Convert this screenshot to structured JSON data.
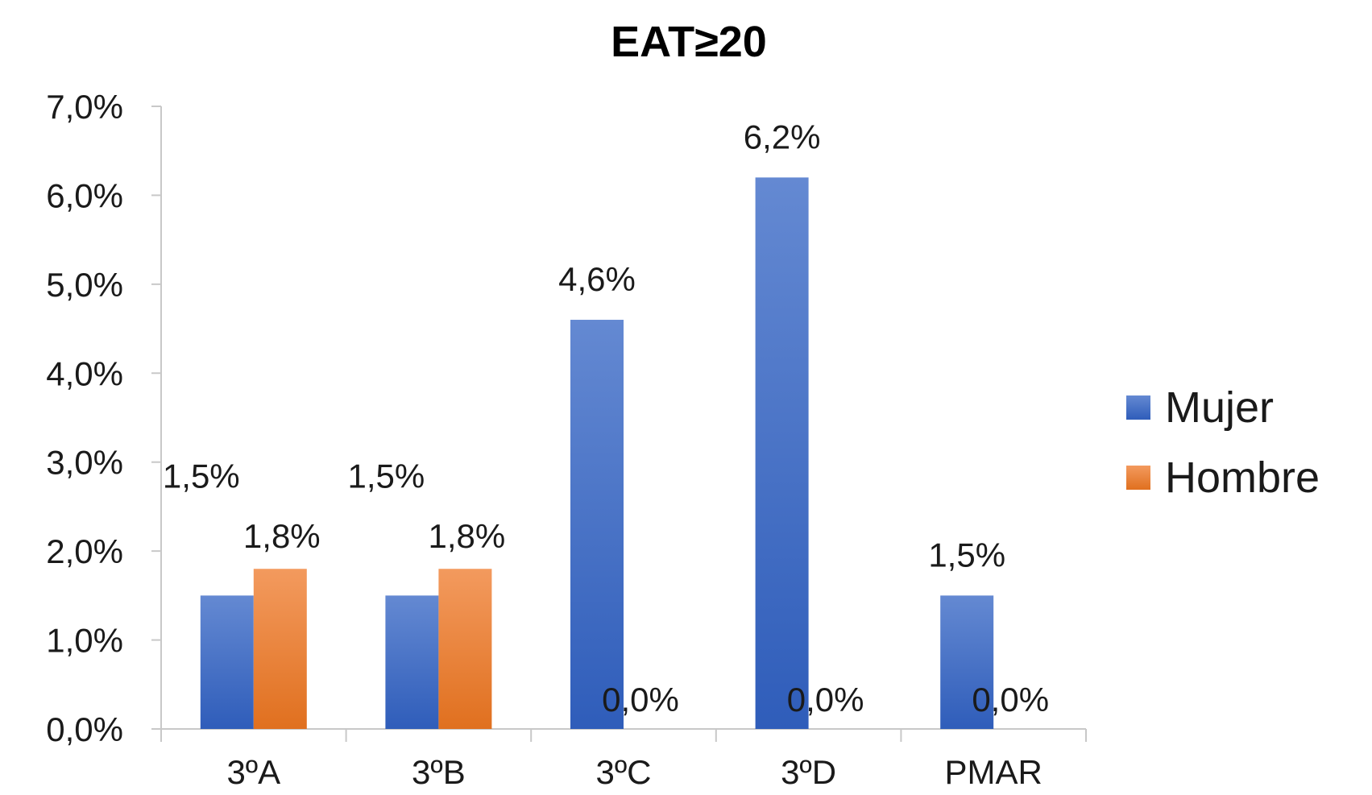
{
  "chart_data": {
    "type": "bar",
    "title": "EAT≥20",
    "categories": [
      "3ºA",
      "3ºB",
      "3ºC",
      "3ºD",
      "PMAR"
    ],
    "series": [
      {
        "name": "Mujer",
        "values": [
          1.5,
          1.5,
          4.6,
          6.2,
          1.5
        ],
        "labels": [
          "1,5%",
          "1,5%",
          "4,6%",
          "6,2%",
          "1,5%"
        ],
        "color": "#4472C4"
      },
      {
        "name": "Hombre",
        "values": [
          1.8,
          1.8,
          0.0,
          0.0,
          0.0
        ],
        "labels": [
          "1,8%",
          "1,8%",
          "0,0%",
          "0,0%",
          "0,0%"
        ],
        "color": "#ED7D31"
      }
    ],
    "yticks": [
      "0,0%",
      "1,0%",
      "2,0%",
      "3,0%",
      "4,0%",
      "5,0%",
      "6,0%",
      "7,0%"
    ],
    "ylim": [
      0,
      7
    ],
    "legend_position": "right",
    "grid": false
  }
}
